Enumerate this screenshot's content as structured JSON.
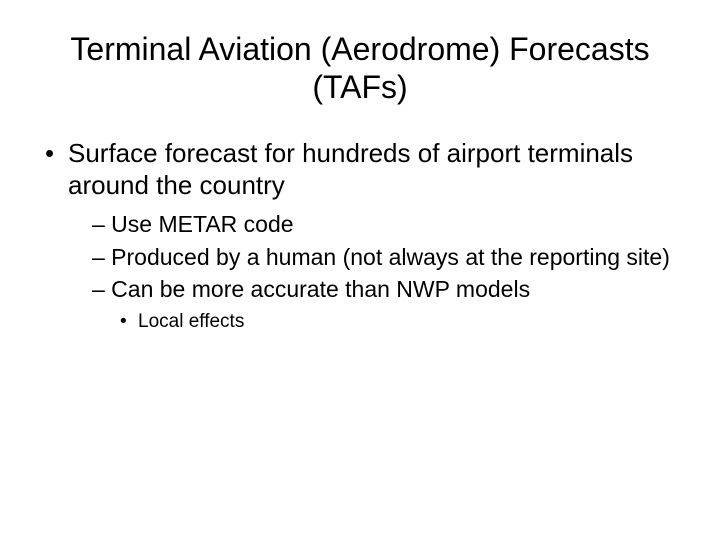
{
  "title": "Terminal Aviation (Aerodrome) Forecasts (TAFs)",
  "bullets": {
    "item1": "Surface forecast for hundreds of airport terminals around the country",
    "sub1": "– Use METAR code",
    "sub2": "– Produced by a human (not always at the reporting site)",
    "sub3": "– Can be more accurate than NWP models",
    "subsub1": "Local effects"
  },
  "style": {
    "background_color": "#ffffff",
    "text_color": "#000000",
    "title_fontsize": 32,
    "level1_fontsize": 26,
    "level2_fontsize": 23,
    "level3_fontsize": 19,
    "font_family": "Arial"
  }
}
